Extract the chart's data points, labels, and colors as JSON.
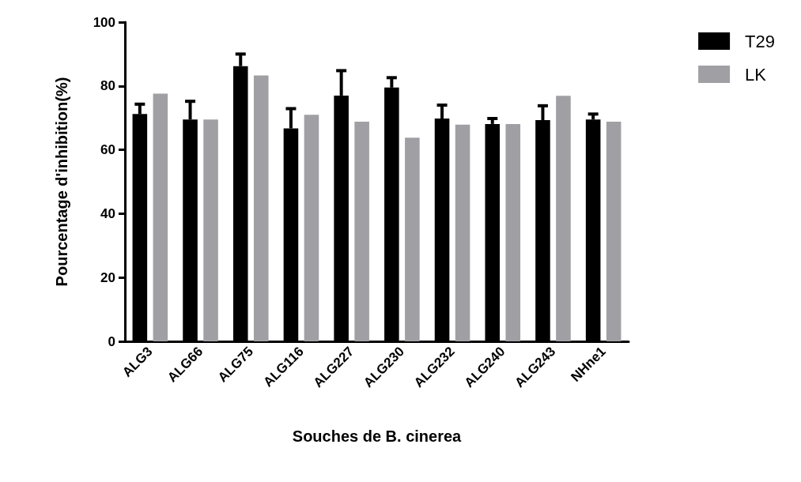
{
  "chart_data": {
    "type": "bar",
    "xlabel": "Souches de B. cinerea",
    "ylabel": "Pourcentage d'inhibition(%)",
    "categories": [
      "ALG3",
      "ALG66",
      "ALG75",
      "ALG116",
      "ALG227",
      "ALG230",
      "ALG232",
      "ALG240",
      "ALG243",
      "NHne1"
    ],
    "series": [
      {
        "name": "T29",
        "color": "#000000",
        "values": [
          71.2,
          69.5,
          86.2,
          66.7,
          77,
          79.5,
          69.8,
          68.1,
          69.3,
          69.5
        ],
        "errors": [
          [
            71.2,
            74.3
          ],
          [
            69.5,
            75.2
          ],
          [
            86.2,
            90
          ],
          [
            66.7,
            72.9
          ],
          [
            77,
            84.8
          ],
          [
            79.5,
            82.6
          ],
          [
            69.8,
            74
          ],
          [
            68.1,
            69.8
          ],
          [
            69.3,
            73.8
          ],
          [
            69.5,
            71.2
          ]
        ]
      },
      {
        "name": "LK",
        "color": "#a0a0a4",
        "values": [
          77.6,
          69.5,
          83.3,
          71,
          68.8,
          63.8,
          67.9,
          68.1,
          76.9,
          68.8
        ]
      }
    ],
    "ylim": [
      0,
      100
    ],
    "yticks": [
      0,
      20,
      40,
      60,
      80,
      100
    ],
    "grid": false,
    "legend": "top right"
  }
}
